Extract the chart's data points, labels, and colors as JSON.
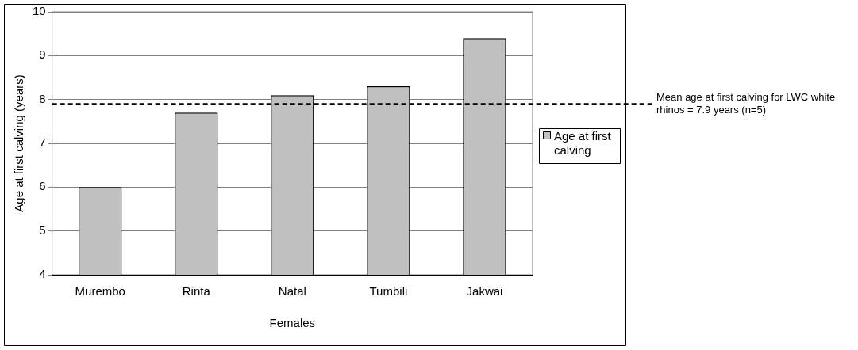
{
  "chart_data": {
    "type": "bar",
    "xlabel": "Females",
    "ylabel": "Age at first calving (years)",
    "categories": [
      "Murembo",
      "Rinta",
      "Natal",
      "Tumbili",
      "Jakwai"
    ],
    "series": [
      {
        "name": "Age at first calving",
        "color": "#c0c0c0",
        "values": [
          6.0,
          7.7,
          8.1,
          8.3,
          9.4
        ]
      }
    ],
    "ylim": [
      4,
      10
    ],
    "yticks": [
      4,
      5,
      6,
      7,
      8,
      9,
      10
    ],
    "grid": "y",
    "legend": "right",
    "ref_lines": [
      {
        "axis": "y",
        "value": 7.9,
        "label": "Mean age at first calving for LWC white rhinos = 7.9 years (n=5)",
        "line_style": "dashed",
        "color": "#000000"
      }
    ]
  }
}
